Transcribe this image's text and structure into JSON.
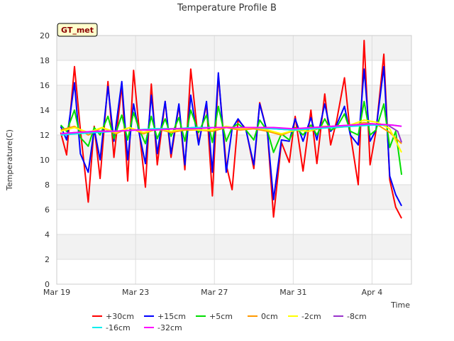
{
  "chart_data": {
    "type": "line",
    "title": "Temperature Profile B",
    "xlabel": "Time",
    "ylabel": "Temperature(C)",
    "ylim": [
      0,
      20
    ],
    "yticks": [
      0,
      2,
      4,
      6,
      8,
      10,
      12,
      14,
      16,
      18,
      20
    ],
    "xlim": [
      0,
      18
    ],
    "xticks": [
      {
        "value": 0,
        "label": "Mar 19"
      },
      {
        "value": 4,
        "label": "Mar 23"
      },
      {
        "value": 8,
        "label": "Mar 27"
      },
      {
        "value": 12,
        "label": "Mar 31"
      },
      {
        "value": 16,
        "label": "Apr 4"
      }
    ],
    "grid": true,
    "annotation": "GT_met",
    "legend_position": "bottom",
    "series": [
      {
        "name": "+30cm",
        "color": "#ff0000",
        "points": [
          [
            0.2,
            12.2
          ],
          [
            0.5,
            10.4
          ],
          [
            0.9,
            17.5
          ],
          [
            1.2,
            12.4
          ],
          [
            1.6,
            6.6
          ],
          [
            1.9,
            12.7
          ],
          [
            2.2,
            8.5
          ],
          [
            2.6,
            16.3
          ],
          [
            2.9,
            10.2
          ],
          [
            3.3,
            16.0
          ],
          [
            3.6,
            8.3
          ],
          [
            3.9,
            17.2
          ],
          [
            4.2,
            12.1
          ],
          [
            4.5,
            7.8
          ],
          [
            4.8,
            16.1
          ],
          [
            5.1,
            9.6
          ],
          [
            5.5,
            14.7
          ],
          [
            5.8,
            10.2
          ],
          [
            6.2,
            14.4
          ],
          [
            6.5,
            9.2
          ],
          [
            6.8,
            17.3
          ],
          [
            7.2,
            11.3
          ],
          [
            7.6,
            14.5
          ],
          [
            7.9,
            7.1
          ],
          [
            8.2,
            16.8
          ],
          [
            8.6,
            9.6
          ],
          [
            8.9,
            7.6
          ],
          [
            9.2,
            13.2
          ],
          [
            9.6,
            12.5
          ],
          [
            10.0,
            9.3
          ],
          [
            10.3,
            14.6
          ],
          [
            10.7,
            12.1
          ],
          [
            11.0,
            5.4
          ],
          [
            11.4,
            11.4
          ],
          [
            11.8,
            9.8
          ],
          [
            12.1,
            13.5
          ],
          [
            12.5,
            9.1
          ],
          [
            12.9,
            14.0
          ],
          [
            13.2,
            9.7
          ],
          [
            13.6,
            15.3
          ],
          [
            13.9,
            11.2
          ],
          [
            14.2,
            13.1
          ],
          [
            14.6,
            16.6
          ],
          [
            14.9,
            12.1
          ],
          [
            15.3,
            8.0
          ],
          [
            15.6,
            19.6
          ],
          [
            15.9,
            9.6
          ],
          [
            16.2,
            12.3
          ],
          [
            16.6,
            18.5
          ],
          [
            16.9,
            8.4
          ],
          [
            17.2,
            6.2
          ],
          [
            17.5,
            5.3
          ]
        ]
      },
      {
        "name": "+15cm",
        "color": "#0000ff",
        "points": [
          [
            0.2,
            12.7
          ],
          [
            0.5,
            11.6
          ],
          [
            0.9,
            16.2
          ],
          [
            1.2,
            10.5
          ],
          [
            1.6,
            9.0
          ],
          [
            1.9,
            12.5
          ],
          [
            2.2,
            10.0
          ],
          [
            2.6,
            15.9
          ],
          [
            2.9,
            11.5
          ],
          [
            3.3,
            16.3
          ],
          [
            3.6,
            10.0
          ],
          [
            3.9,
            14.5
          ],
          [
            4.2,
            12.0
          ],
          [
            4.5,
            9.7
          ],
          [
            4.8,
            15.2
          ],
          [
            5.1,
            10.5
          ],
          [
            5.5,
            14.7
          ],
          [
            5.8,
            10.5
          ],
          [
            6.2,
            14.5
          ],
          [
            6.5,
            9.6
          ],
          [
            6.8,
            15.2
          ],
          [
            7.2,
            11.2
          ],
          [
            7.6,
            14.7
          ],
          [
            7.9,
            9.0
          ],
          [
            8.2,
            17.0
          ],
          [
            8.6,
            9.0
          ],
          [
            8.9,
            12.5
          ],
          [
            9.2,
            13.3
          ],
          [
            9.6,
            12.4
          ],
          [
            10.0,
            9.6
          ],
          [
            10.3,
            14.5
          ],
          [
            10.7,
            12.1
          ],
          [
            11.0,
            6.8
          ],
          [
            11.4,
            11.6
          ],
          [
            11.8,
            11.5
          ],
          [
            12.1,
            13.3
          ],
          [
            12.5,
            11.5
          ],
          [
            12.9,
            13.4
          ],
          [
            13.2,
            11.6
          ],
          [
            13.6,
            14.5
          ],
          [
            13.9,
            12.3
          ],
          [
            14.2,
            12.8
          ],
          [
            14.6,
            14.3
          ],
          [
            14.9,
            12.0
          ],
          [
            15.3,
            11.2
          ],
          [
            15.6,
            17.3
          ],
          [
            15.9,
            11.5
          ],
          [
            16.2,
            12.4
          ],
          [
            16.6,
            17.5
          ],
          [
            16.9,
            8.7
          ],
          [
            17.2,
            7.2
          ],
          [
            17.5,
            6.3
          ]
        ]
      },
      {
        "name": "+5cm",
        "color": "#00dd00",
        "points": [
          [
            0.2,
            12.8
          ],
          [
            0.5,
            12.3
          ],
          [
            0.9,
            14.0
          ],
          [
            1.2,
            11.8
          ],
          [
            1.6,
            11.1
          ],
          [
            1.9,
            12.6
          ],
          [
            2.2,
            12.0
          ],
          [
            2.6,
            13.5
          ],
          [
            2.9,
            11.7
          ],
          [
            3.3,
            13.6
          ],
          [
            3.6,
            11.6
          ],
          [
            3.9,
            13.8
          ],
          [
            4.2,
            12.4
          ],
          [
            4.5,
            11.3
          ],
          [
            4.8,
            13.5
          ],
          [
            5.1,
            11.7
          ],
          [
            5.5,
            13.3
          ],
          [
            5.8,
            11.9
          ],
          [
            6.2,
            13.4
          ],
          [
            6.5,
            11.5
          ],
          [
            6.8,
            14.0
          ],
          [
            7.2,
            12.2
          ],
          [
            7.6,
            13.6
          ],
          [
            7.9,
            11.4
          ],
          [
            8.2,
            14.3
          ],
          [
            8.6,
            11.5
          ],
          [
            8.9,
            12.6
          ],
          [
            9.2,
            12.9
          ],
          [
            9.6,
            12.4
          ],
          [
            10.0,
            11.6
          ],
          [
            10.3,
            13.2
          ],
          [
            10.7,
            12.3
          ],
          [
            11.0,
            10.6
          ],
          [
            11.4,
            12.1
          ],
          [
            11.8,
            11.6
          ],
          [
            12.1,
            12.6
          ],
          [
            12.5,
            12.0
          ],
          [
            12.9,
            12.8
          ],
          [
            13.2,
            12.0
          ],
          [
            13.6,
            13.3
          ],
          [
            13.9,
            12.4
          ],
          [
            14.2,
            12.6
          ],
          [
            14.6,
            13.7
          ],
          [
            14.9,
            12.3
          ],
          [
            15.3,
            12.0
          ],
          [
            15.6,
            14.7
          ],
          [
            15.9,
            12.0
          ],
          [
            16.2,
            12.4
          ],
          [
            16.6,
            14.5
          ],
          [
            16.9,
            11.0
          ],
          [
            17.2,
            12.3
          ],
          [
            17.5,
            8.8
          ]
        ]
      },
      {
        "name": "0cm",
        "color": "#ff9900",
        "points": [
          [
            0.2,
            12.4
          ],
          [
            0.9,
            12.7
          ],
          [
            1.6,
            12.0
          ],
          [
            2.3,
            12.6
          ],
          [
            3.0,
            12.1
          ],
          [
            3.7,
            12.6
          ],
          [
            4.4,
            12.1
          ],
          [
            5.1,
            12.5
          ],
          [
            5.8,
            12.2
          ],
          [
            6.5,
            12.4
          ],
          [
            7.2,
            12.4
          ],
          [
            7.9,
            12.3
          ],
          [
            8.6,
            12.6
          ],
          [
            9.3,
            12.4
          ],
          [
            10.0,
            12.5
          ],
          [
            10.7,
            12.3
          ],
          [
            11.4,
            12.0
          ],
          [
            12.1,
            12.4
          ],
          [
            12.8,
            12.3
          ],
          [
            13.5,
            12.6
          ],
          [
            14.2,
            12.6
          ],
          [
            14.9,
            12.7
          ],
          [
            15.6,
            13.0
          ],
          [
            16.3,
            12.8
          ],
          [
            16.9,
            12.2
          ],
          [
            17.5,
            11.3
          ]
        ]
      },
      {
        "name": "-2cm",
        "color": "#ffff00",
        "points": [
          [
            0.2,
            12.3
          ],
          [
            0.9,
            12.6
          ],
          [
            1.6,
            12.2
          ],
          [
            2.3,
            12.6
          ],
          [
            3.0,
            12.2
          ],
          [
            3.7,
            12.6
          ],
          [
            4.4,
            12.2
          ],
          [
            5.1,
            12.5
          ],
          [
            5.8,
            12.3
          ],
          [
            6.5,
            12.5
          ],
          [
            7.2,
            12.4
          ],
          [
            7.9,
            12.4
          ],
          [
            8.6,
            12.7
          ],
          [
            9.3,
            12.5
          ],
          [
            10.0,
            12.6
          ],
          [
            10.7,
            12.4
          ],
          [
            11.4,
            12.1
          ],
          [
            12.1,
            12.4
          ],
          [
            12.8,
            12.3
          ],
          [
            13.5,
            12.7
          ],
          [
            14.2,
            12.7
          ],
          [
            14.9,
            12.8
          ],
          [
            15.6,
            13.2
          ],
          [
            16.3,
            13.0
          ],
          [
            16.9,
            12.5
          ],
          [
            17.5,
            10.6
          ]
        ]
      },
      {
        "name": "-8cm",
        "color": "#9933cc",
        "points": [
          [
            0.2,
            12.1
          ],
          [
            1.0,
            12.2
          ],
          [
            2.0,
            12.3
          ],
          [
            3.0,
            12.3
          ],
          [
            4.0,
            12.4
          ],
          [
            5.0,
            12.5
          ],
          [
            6.0,
            12.5
          ],
          [
            7.0,
            12.6
          ],
          [
            8.0,
            12.6
          ],
          [
            9.0,
            12.6
          ],
          [
            10.0,
            12.6
          ],
          [
            11.0,
            12.5
          ],
          [
            12.0,
            12.4
          ],
          [
            13.0,
            12.5
          ],
          [
            14.0,
            12.7
          ],
          [
            15.0,
            12.8
          ],
          [
            16.0,
            12.9
          ],
          [
            16.8,
            12.8
          ],
          [
            17.3,
            12.3
          ],
          [
            17.5,
            11.4
          ]
        ]
      },
      {
        "name": "-16cm",
        "color": "#00eeee",
        "points": [
          [
            0.2,
            12.0
          ],
          [
            1.0,
            12.1
          ],
          [
            2.0,
            12.2
          ],
          [
            3.0,
            12.3
          ],
          [
            4.0,
            12.4
          ],
          [
            5.0,
            12.5
          ],
          [
            6.0,
            12.5
          ],
          [
            7.0,
            12.6
          ],
          [
            8.0,
            12.6
          ],
          [
            9.0,
            12.6
          ],
          [
            10.0,
            12.6
          ],
          [
            11.0,
            12.5
          ],
          [
            12.0,
            12.4
          ],
          [
            13.0,
            12.5
          ],
          [
            14.0,
            12.6
          ],
          [
            15.0,
            12.7
          ],
          [
            16.0,
            12.8
          ],
          [
            17.0,
            12.8
          ],
          [
            17.5,
            12.7
          ]
        ]
      },
      {
        "name": "-32cm",
        "color": "#ff00ff",
        "points": [
          [
            0.2,
            12.1
          ],
          [
            1.0,
            12.2
          ],
          [
            2.0,
            12.3
          ],
          [
            3.0,
            12.3
          ],
          [
            4.0,
            12.4
          ],
          [
            5.0,
            12.4
          ],
          [
            6.0,
            12.5
          ],
          [
            7.0,
            12.5
          ],
          [
            8.0,
            12.6
          ],
          [
            9.0,
            12.6
          ],
          [
            10.0,
            12.6
          ],
          [
            11.0,
            12.6
          ],
          [
            12.0,
            12.5
          ],
          [
            13.0,
            12.6
          ],
          [
            14.0,
            12.7
          ],
          [
            15.0,
            12.8
          ],
          [
            16.0,
            12.9
          ],
          [
            17.0,
            12.8
          ],
          [
            17.5,
            12.7
          ]
        ]
      }
    ]
  }
}
